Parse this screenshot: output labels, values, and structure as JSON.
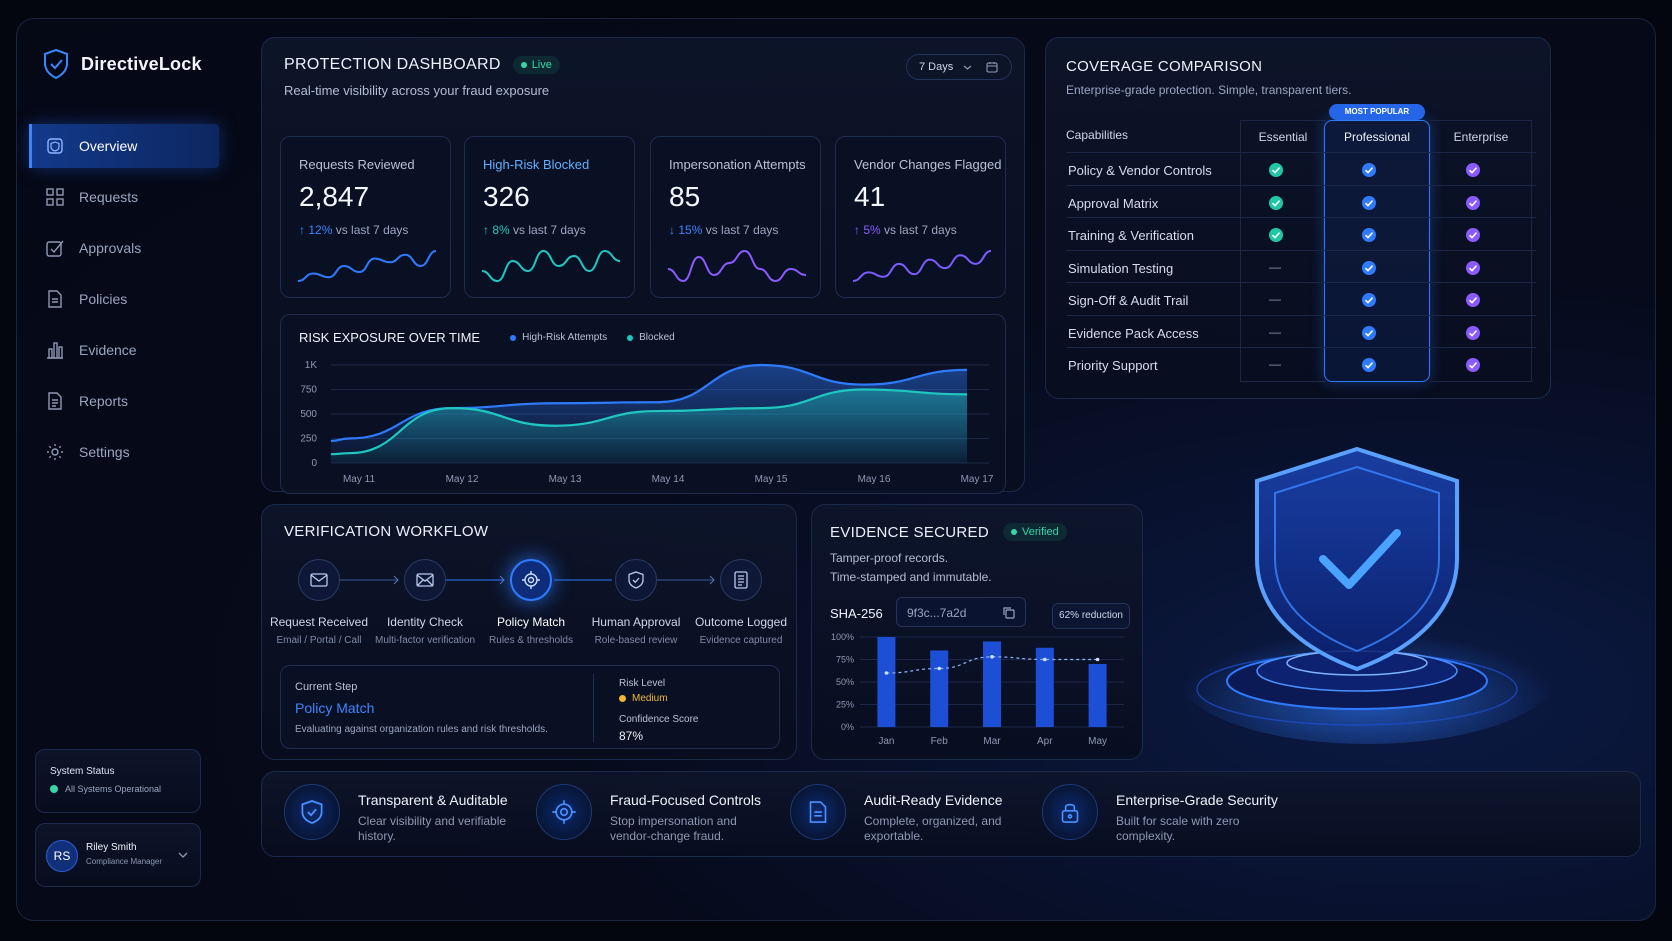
{
  "brand": {
    "name": "DirectiveLock"
  },
  "sidebar": {
    "items": [
      {
        "label": "Overview",
        "icon": "shield-icon",
        "active": true
      },
      {
        "label": "Requests",
        "icon": "grid-icon"
      },
      {
        "label": "Approvals",
        "icon": "check-square-icon"
      },
      {
        "label": "Policies",
        "icon": "document-icon"
      },
      {
        "label": "Evidence",
        "icon": "bar-chart-icon"
      },
      {
        "label": "Reports",
        "icon": "report-icon"
      },
      {
        "label": "Settings",
        "icon": "gear-icon"
      }
    ],
    "system_status": {
      "title": "System Status",
      "text": "All Systems Operational"
    },
    "user": {
      "initials": "RS",
      "name": "Riley Smith",
      "role": "Compliance Manager"
    }
  },
  "dashboard": {
    "title": "PROTECTION DASHBOARD",
    "live_badge": "Live",
    "subtitle": "Real-time visibility across your fraud exposure",
    "range_select": "7 Days",
    "kpis": [
      {
        "label": "Requests Reviewed",
        "value": "2,847",
        "delta_arrow": "↑",
        "delta": "12%",
        "delta_text": "vs last 7 days",
        "color": "#2f7bff",
        "trend": [
          3,
          4,
          3.5,
          5,
          4.2,
          6,
          5.5,
          6.5,
          5,
          7
        ]
      },
      {
        "label": "High-Risk Blocked",
        "value": "326",
        "delta_arrow": "↑",
        "delta": "8%",
        "delta_text": "vs last 7 days",
        "color": "#20c7c0",
        "trend": [
          4,
          3,
          5,
          4,
          6,
          4.5,
          5.5,
          4,
          6,
          5
        ]
      },
      {
        "label": "Impersonation Attempts",
        "value": "85",
        "delta_arrow": "↓",
        "delta": "15%",
        "delta_text": "vs last 7 days",
        "color": "#8a5bff",
        "trend": [
          5,
          4,
          6,
          4.5,
          5.5,
          6.5,
          5,
          4,
          5,
          4.5
        ]
      },
      {
        "label": "Vendor Changes Flagged",
        "value": "41",
        "delta_arrow": "↑",
        "delta": "5%",
        "delta_text": "vs last 7 days",
        "color": "#7a5cff",
        "trend": [
          3,
          4,
          3.5,
          5,
          3.8,
          5.5,
          4.5,
          6,
          5,
          6.5
        ]
      }
    ]
  },
  "chart_data": [
    {
      "type": "area",
      "title": "RISK EXPOSURE OVER TIME",
      "x": [
        "May 11",
        "May 12",
        "May 13",
        "May 14",
        "May 15",
        "May 16",
        "May 17"
      ],
      "ylim": [
        0,
        1000
      ],
      "yticks": [
        "0",
        "250",
        "500",
        "750",
        "1K"
      ],
      "series": [
        {
          "name": "High-Risk Attempts",
          "color": "#2f7bff",
          "values": [
            250,
            560,
            610,
            620,
            1000,
            800,
            950
          ]
        },
        {
          "name": "Blocked",
          "color": "#20c7c0",
          "values": [
            100,
            560,
            380,
            530,
            560,
            750,
            700
          ]
        }
      ],
      "legend": "top"
    },
    {
      "type": "bar",
      "categories": [
        "Jan",
        "Feb",
        "Mar",
        "Apr",
        "May"
      ],
      "values": [
        100,
        85,
        95,
        88,
        70
      ],
      "trend": [
        60,
        65,
        78,
        75,
        75
      ],
      "yticks": [
        "0%",
        "25%",
        "50%",
        "75%",
        "100%"
      ],
      "ylim": [
        0,
        100
      ],
      "annotation": "62% reduction"
    }
  ],
  "coverage": {
    "title": "COVERAGE COMPARISON",
    "subtitle": "Enterprise-grade protection. Simple, transparent tiers.",
    "popular_badge": "MOST POPULAR",
    "capabilities_header": "Capabilities",
    "tiers": [
      "Essential",
      "Professional",
      "Enterprise"
    ],
    "rows": [
      {
        "name": "Policy & Vendor Controls",
        "essential": "check",
        "professional": "check",
        "enterprise": "check"
      },
      {
        "name": "Approval Matrix",
        "essential": "check",
        "professional": "check",
        "enterprise": "check"
      },
      {
        "name": "Training & Verification",
        "essential": "check",
        "professional": "check",
        "enterprise": "check"
      },
      {
        "name": "Simulation Testing",
        "essential": "dash",
        "professional": "check",
        "enterprise": "check"
      },
      {
        "name": "Sign-Off & Audit Trail",
        "essential": "dash",
        "professional": "check",
        "enterprise": "check"
      },
      {
        "name": "Evidence Pack Access",
        "essential": "dash",
        "professional": "check",
        "enterprise": "check"
      },
      {
        "name": "Priority Support",
        "essential": "dash",
        "professional": "check",
        "enterprise": "check"
      }
    ],
    "dash_glyph": "—"
  },
  "workflow": {
    "title": "VERIFICATION WORKFLOW",
    "steps": [
      {
        "title": "Request Received",
        "sub": "Email / Portal / Call",
        "icon": "mail-icon"
      },
      {
        "title": "Identity Check",
        "sub": "Multi-factor verification",
        "icon": "mail-open-icon"
      },
      {
        "title": "Policy Match",
        "sub": "Rules & thresholds",
        "icon": "target-icon",
        "active": true
      },
      {
        "title": "Human Approval",
        "sub": "Role-based review",
        "icon": "shield-check-icon"
      },
      {
        "title": "Outcome Logged",
        "sub": "Evidence captured",
        "icon": "log-icon"
      }
    ],
    "current_step_label": "Current Step",
    "current_step": "Policy Match",
    "current_step_desc": "Evaluating against organization rules and risk thresholds.",
    "risk_level_label": "Risk Level",
    "risk_level": "Medium",
    "confidence_label": "Confidence Score",
    "confidence": "87%"
  },
  "evidence": {
    "title": "EVIDENCE SECURED",
    "badge": "Verified",
    "line1": "Tamper-proof records.",
    "line2": "Time-stamped and immutable.",
    "hash_label": "SHA-256",
    "hash_value": "9f3c...7a2d"
  },
  "features": [
    {
      "title": "Transparent & Auditable",
      "sub": "Clear visibility and verifiable history.",
      "icon": "shield-check-icon"
    },
    {
      "title": "Fraud-Focused Controls",
      "sub": "Stop impersonation and vendor-change fraud.",
      "icon": "target-icon"
    },
    {
      "title": "Audit-Ready Evidence",
      "sub": "Complete, organized, and exportable.",
      "icon": "document-icon"
    },
    {
      "title": "Enterprise-Grade Security",
      "sub": "Built for scale with zero complexity.",
      "icon": "lock-icon"
    }
  ],
  "colors": {
    "accent": "#2f7bff",
    "teal": "#20c7c0",
    "purple": "#8a5bff",
    "medium": "#f2b632"
  }
}
